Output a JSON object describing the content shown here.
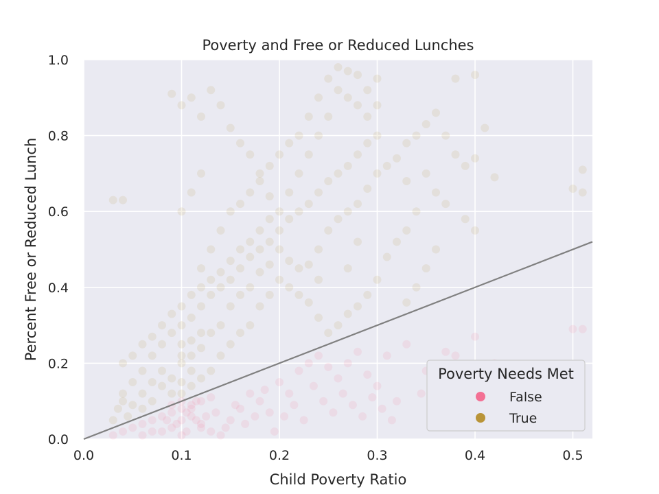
{
  "chart_data": {
    "type": "scatter",
    "title": "Poverty and Free or Reduced Lunches",
    "xlabel": "Child Poverty Ratio",
    "ylabel": "Percent Free or Reduced Lunch",
    "xlim": [
      0.0,
      0.52
    ],
    "ylim": [
      0.0,
      1.0
    ],
    "xticks": [
      0.0,
      0.1,
      0.2,
      0.3,
      0.4,
      0.5
    ],
    "xtick_labels": [
      "0.0",
      "0.1",
      "0.2",
      "0.3",
      "0.4",
      "0.5"
    ],
    "yticks": [
      0.0,
      0.2,
      0.4,
      0.6,
      0.8,
      1.0
    ],
    "ytick_labels": [
      "0.0",
      "0.2",
      "0.4",
      "0.6",
      "0.8",
      "1.0"
    ],
    "grid": true,
    "background": "#eaeaf2",
    "legend": {
      "title": "Poverty Needs Met",
      "placement": "lower-right",
      "entries": [
        {
          "label": "False",
          "color": "#f37094"
        },
        {
          "label": "True",
          "color": "#b99438"
        }
      ]
    },
    "reference_line": {
      "type": "identity",
      "slope": 1,
      "intercept": 0,
      "color": "#808080"
    },
    "point_opacity": 0.12,
    "series": [
      {
        "name": "False",
        "color": "#f37094",
        "points": [
          [
            0.03,
            0.01
          ],
          [
            0.04,
            0.02
          ],
          [
            0.05,
            0.03
          ],
          [
            0.06,
            0.04
          ],
          [
            0.07,
            0.05
          ],
          [
            0.08,
            0.06
          ],
          [
            0.09,
            0.07
          ],
          [
            0.1,
            0.08
          ],
          [
            0.11,
            0.09
          ],
          [
            0.12,
            0.1
          ],
          [
            0.13,
            0.11
          ],
          [
            0.1,
            0.05
          ],
          [
            0.11,
            0.06
          ],
          [
            0.09,
            0.03
          ],
          [
            0.12,
            0.04
          ],
          [
            0.13,
            0.02
          ],
          [
            0.14,
            0.01
          ],
          [
            0.15,
            0.05
          ],
          [
            0.16,
            0.08
          ],
          [
            0.17,
            0.12
          ],
          [
            0.18,
            0.1
          ],
          [
            0.19,
            0.07
          ],
          [
            0.2,
            0.15
          ],
          [
            0.21,
            0.12
          ],
          [
            0.22,
            0.18
          ],
          [
            0.23,
            0.2
          ],
          [
            0.24,
            0.22
          ],
          [
            0.25,
            0.19
          ],
          [
            0.26,
            0.16
          ],
          [
            0.27,
            0.2
          ],
          [
            0.28,
            0.23
          ],
          [
            0.29,
            0.17
          ],
          [
            0.3,
            0.14
          ],
          [
            0.31,
            0.22
          ],
          [
            0.32,
            0.1
          ],
          [
            0.33,
            0.25
          ],
          [
            0.35,
            0.18
          ],
          [
            0.37,
            0.23
          ],
          [
            0.38,
            0.22
          ],
          [
            0.4,
            0.27
          ],
          [
            0.08,
            0.02
          ],
          [
            0.1,
            0.01
          ],
          [
            0.12,
            0.03
          ],
          [
            0.11,
            0.08
          ],
          [
            0.1,
            0.1
          ],
          [
            0.09,
            0.09
          ],
          [
            0.105,
            0.07
          ],
          [
            0.115,
            0.05
          ],
          [
            0.125,
            0.06
          ],
          [
            0.095,
            0.04
          ],
          [
            0.105,
            0.02
          ],
          [
            0.135,
            0.07
          ],
          [
            0.145,
            0.03
          ],
          [
            0.155,
            0.09
          ],
          [
            0.165,
            0.04
          ],
          [
            0.175,
            0.06
          ],
          [
            0.185,
            0.13
          ],
          [
            0.195,
            0.02
          ],
          [
            0.205,
            0.06
          ],
          [
            0.215,
            0.09
          ],
          [
            0.225,
            0.05
          ],
          [
            0.235,
            0.14
          ],
          [
            0.245,
            0.1
          ],
          [
            0.255,
            0.07
          ],
          [
            0.265,
            0.12
          ],
          [
            0.275,
            0.09
          ],
          [
            0.285,
            0.06
          ],
          [
            0.295,
            0.11
          ],
          [
            0.305,
            0.08
          ],
          [
            0.315,
            0.05
          ],
          [
            0.345,
            0.12
          ],
          [
            0.36,
            0.08
          ],
          [
            0.39,
            0.15
          ],
          [
            0.42,
            0.2
          ],
          [
            0.44,
            0.1
          ],
          [
            0.5,
            0.29
          ],
          [
            0.51,
            0.29
          ],
          [
            0.06,
            0.01
          ],
          [
            0.07,
            0.02
          ],
          [
            0.085,
            0.05
          ],
          [
            0.115,
            0.1
          ]
        ]
      },
      {
        "name": "True",
        "color": "#b99438",
        "points": [
          [
            0.03,
            0.05
          ],
          [
            0.035,
            0.08
          ],
          [
            0.04,
            0.1
          ],
          [
            0.045,
            0.06
          ],
          [
            0.05,
            0.09
          ],
          [
            0.04,
            0.12
          ],
          [
            0.03,
            0.63
          ],
          [
            0.04,
            0.63
          ],
          [
            0.05,
            0.15
          ],
          [
            0.06,
            0.18
          ],
          [
            0.07,
            0.22
          ],
          [
            0.08,
            0.25
          ],
          [
            0.09,
            0.28
          ],
          [
            0.1,
            0.3
          ],
          [
            0.11,
            0.32
          ],
          [
            0.12,
            0.35
          ],
          [
            0.13,
            0.38
          ],
          [
            0.14,
            0.4
          ],
          [
            0.15,
            0.42
          ],
          [
            0.16,
            0.45
          ],
          [
            0.17,
            0.48
          ],
          [
            0.18,
            0.5
          ],
          [
            0.19,
            0.52
          ],
          [
            0.2,
            0.55
          ],
          [
            0.21,
            0.58
          ],
          [
            0.22,
            0.6
          ],
          [
            0.23,
            0.62
          ],
          [
            0.24,
            0.65
          ],
          [
            0.25,
            0.68
          ],
          [
            0.26,
            0.7
          ],
          [
            0.27,
            0.72
          ],
          [
            0.28,
            0.75
          ],
          [
            0.29,
            0.78
          ],
          [
            0.3,
            0.8
          ],
          [
            0.1,
            0.15
          ],
          [
            0.1,
            0.2
          ],
          [
            0.1,
            0.25
          ],
          [
            0.11,
            0.18
          ],
          [
            0.11,
            0.22
          ],
          [
            0.12,
            0.28
          ],
          [
            0.09,
            0.12
          ],
          [
            0.08,
            0.14
          ],
          [
            0.07,
            0.1
          ],
          [
            0.06,
            0.12
          ],
          [
            0.12,
            0.45
          ],
          [
            0.13,
            0.5
          ],
          [
            0.14,
            0.55
          ],
          [
            0.15,
            0.6
          ],
          [
            0.16,
            0.62
          ],
          [
            0.17,
            0.65
          ],
          [
            0.18,
            0.7
          ],
          [
            0.19,
            0.72
          ],
          [
            0.2,
            0.75
          ],
          [
            0.21,
            0.78
          ],
          [
            0.22,
            0.8
          ],
          [
            0.23,
            0.85
          ],
          [
            0.24,
            0.9
          ],
          [
            0.25,
            0.95
          ],
          [
            0.26,
            0.98
          ],
          [
            0.27,
            0.97
          ],
          [
            0.28,
            0.96
          ],
          [
            0.29,
            0.92
          ],
          [
            0.3,
            0.88
          ],
          [
            0.3,
            0.95
          ],
          [
            0.29,
            0.85
          ],
          [
            0.28,
            0.88
          ],
          [
            0.27,
            0.9
          ],
          [
            0.26,
            0.92
          ],
          [
            0.25,
            0.85
          ],
          [
            0.24,
            0.8
          ],
          [
            0.23,
            0.75
          ],
          [
            0.22,
            0.7
          ],
          [
            0.21,
            0.65
          ],
          [
            0.2,
            0.6
          ],
          [
            0.19,
            0.58
          ],
          [
            0.18,
            0.55
          ],
          [
            0.17,
            0.52
          ],
          [
            0.16,
            0.5
          ],
          [
            0.15,
            0.47
          ],
          [
            0.14,
            0.44
          ],
          [
            0.13,
            0.42
          ],
          [
            0.12,
            0.4
          ],
          [
            0.11,
            0.38
          ],
          [
            0.1,
            0.35
          ],
          [
            0.09,
            0.33
          ],
          [
            0.08,
            0.3
          ],
          [
            0.07,
            0.27
          ],
          [
            0.06,
            0.25
          ],
          [
            0.05,
            0.22
          ],
          [
            0.04,
            0.2
          ],
          [
            0.1,
            0.6
          ],
          [
            0.11,
            0.65
          ],
          [
            0.12,
            0.7
          ],
          [
            0.1,
            0.88
          ],
          [
            0.11,
            0.9
          ],
          [
            0.12,
            0.85
          ],
          [
            0.09,
            0.91
          ],
          [
            0.13,
            0.92
          ],
          [
            0.14,
            0.88
          ],
          [
            0.15,
            0.82
          ],
          [
            0.16,
            0.78
          ],
          [
            0.17,
            0.75
          ],
          [
            0.18,
            0.68
          ],
          [
            0.19,
            0.64
          ],
          [
            0.2,
            0.5
          ],
          [
            0.21,
            0.47
          ],
          [
            0.22,
            0.45
          ],
          [
            0.23,
            0.46
          ],
          [
            0.24,
            0.5
          ],
          [
            0.25,
            0.55
          ],
          [
            0.26,
            0.58
          ],
          [
            0.27,
            0.6
          ],
          [
            0.28,
            0.62
          ],
          [
            0.29,
            0.66
          ],
          [
            0.3,
            0.7
          ],
          [
            0.31,
            0.72
          ],
          [
            0.32,
            0.74
          ],
          [
            0.33,
            0.78
          ],
          [
            0.34,
            0.8
          ],
          [
            0.35,
            0.83
          ],
          [
            0.36,
            0.86
          ],
          [
            0.37,
            0.8
          ],
          [
            0.38,
            0.75
          ],
          [
            0.39,
            0.72
          ],
          [
            0.4,
            0.74
          ],
          [
            0.41,
            0.82
          ],
          [
            0.4,
            0.96
          ],
          [
            0.38,
            0.95
          ],
          [
            0.35,
            0.7
          ],
          [
            0.36,
            0.65
          ],
          [
            0.37,
            0.62
          ],
          [
            0.34,
            0.6
          ],
          [
            0.33,
            0.55
          ],
          [
            0.32,
            0.52
          ],
          [
            0.31,
            0.48
          ],
          [
            0.3,
            0.42
          ],
          [
            0.29,
            0.38
          ],
          [
            0.28,
            0.35
          ],
          [
            0.27,
            0.33
          ],
          [
            0.26,
            0.3
          ],
          [
            0.25,
            0.28
          ],
          [
            0.24,
            0.32
          ],
          [
            0.23,
            0.36
          ],
          [
            0.22,
            0.38
          ],
          [
            0.21,
            0.4
          ],
          [
            0.2,
            0.42
          ],
          [
            0.19,
            0.38
          ],
          [
            0.18,
            0.35
          ],
          [
            0.17,
            0.3
          ],
          [
            0.16,
            0.28
          ],
          [
            0.15,
            0.25
          ],
          [
            0.14,
            0.22
          ],
          [
            0.13,
            0.18
          ],
          [
            0.12,
            0.16
          ],
          [
            0.11,
            0.14
          ],
          [
            0.1,
            0.12
          ],
          [
            0.09,
            0.16
          ],
          [
            0.08,
            0.18
          ],
          [
            0.07,
            0.15
          ],
          [
            0.06,
            0.08
          ],
          [
            0.33,
            0.36
          ],
          [
            0.34,
            0.4
          ],
          [
            0.35,
            0.45
          ],
          [
            0.36,
            0.5
          ],
          [
            0.39,
            0.58
          ],
          [
            0.4,
            0.55
          ],
          [
            0.42,
            0.69
          ],
          [
            0.5,
            0.66
          ],
          [
            0.51,
            0.65
          ],
          [
            0.51,
            0.71
          ],
          [
            0.33,
            0.68
          ],
          [
            0.28,
            0.52
          ],
          [
            0.27,
            0.45
          ],
          [
            0.24,
            0.42
          ],
          [
            0.14,
            0.3
          ],
          [
            0.15,
            0.35
          ],
          [
            0.16,
            0.38
          ],
          [
            0.17,
            0.4
          ],
          [
            0.18,
            0.44
          ],
          [
            0.19,
            0.46
          ],
          [
            0.13,
            0.28
          ],
          [
            0.12,
            0.24
          ],
          [
            0.11,
            0.26
          ],
          [
            0.1,
            0.22
          ]
        ]
      }
    ]
  }
}
